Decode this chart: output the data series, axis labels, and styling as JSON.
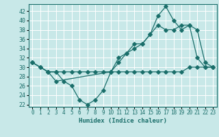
{
  "xlabel": "Humidex (Indice chaleur)",
  "bg_color": "#c8e8e8",
  "line_color": "#1a6e6a",
  "grid_color": "#ffffff",
  "xlim": [
    -0.5,
    23.5
  ],
  "ylim": [
    21.5,
    43.5
  ],
  "yticks": [
    22,
    24,
    26,
    28,
    30,
    32,
    34,
    36,
    38,
    40,
    42
  ],
  "xticks": [
    0,
    1,
    2,
    3,
    4,
    5,
    6,
    7,
    8,
    9,
    10,
    11,
    12,
    13,
    14,
    15,
    16,
    17,
    18,
    19,
    20,
    21,
    22,
    23
  ],
  "line1_x": [
    0,
    1,
    2,
    3,
    4,
    5,
    6,
    7,
    8,
    9,
    10,
    11,
    12,
    13,
    14,
    15,
    16,
    17,
    18,
    19,
    20,
    21,
    22,
    23
  ],
  "line1_y": [
    31,
    30,
    29,
    29,
    29,
    29,
    29,
    29,
    29,
    29,
    29,
    29,
    29,
    29,
    29,
    29,
    29,
    29,
    29,
    29,
    30,
    30,
    30,
    30
  ],
  "line2_x": [
    0,
    1,
    2,
    3,
    4,
    5,
    6,
    7,
    8,
    9,
    10,
    11,
    12,
    13,
    14,
    15,
    16,
    17,
    18,
    19,
    20,
    21,
    22,
    23
  ],
  "line2_y": [
    31,
    30,
    29,
    29,
    27,
    26,
    23,
    22,
    23,
    25,
    29,
    31,
    33,
    35,
    35,
    37,
    39,
    38,
    38,
    39,
    39,
    32,
    30,
    30
  ],
  "line3_x": [
    0,
    2,
    3,
    10,
    11,
    12,
    13,
    14,
    15,
    16,
    17,
    18,
    19,
    20,
    21,
    22,
    23
  ],
  "line3_y": [
    31,
    29,
    27,
    29,
    32,
    33,
    34,
    35,
    37,
    41,
    43,
    40,
    38,
    39,
    38,
    31,
    30
  ]
}
